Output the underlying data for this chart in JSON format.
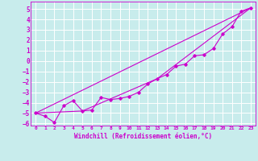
{
  "title": "",
  "xlabel": "Windchill (Refroidissement éolien,°C)",
  "bg_color": "#c8ecec",
  "grid_color": "#aadddd",
  "line_color": "#cc00cc",
  "xlim": [
    -0.5,
    23.5
  ],
  "ylim": [
    -6.2,
    5.7
  ],
  "yticks": [
    -6,
    -5,
    -4,
    -3,
    -2,
    -1,
    0,
    1,
    2,
    3,
    4,
    5
  ],
  "xticks": [
    0,
    1,
    2,
    3,
    4,
    5,
    6,
    7,
    8,
    9,
    10,
    11,
    12,
    13,
    14,
    15,
    16,
    17,
    18,
    19,
    20,
    21,
    22,
    23
  ],
  "line1_x": [
    0,
    1,
    2,
    3,
    4,
    5,
    6,
    7,
    8,
    9,
    10,
    11,
    12,
    13,
    14,
    15,
    16,
    17,
    18,
    19,
    20,
    21,
    22,
    23
  ],
  "line1_y": [
    -5.0,
    -5.3,
    -5.9,
    -4.3,
    -3.8,
    -4.8,
    -4.7,
    -3.5,
    -3.7,
    -3.6,
    -3.4,
    -3.0,
    -2.2,
    -1.7,
    -1.3,
    -0.5,
    -0.3,
    0.5,
    0.6,
    1.2,
    2.6,
    3.3,
    4.8,
    5.1
  ],
  "line2_x": [
    0,
    23
  ],
  "line2_y": [
    -5.0,
    5.1
  ],
  "line3_x": [
    0,
    5,
    13,
    23
  ],
  "line3_y": [
    -5.0,
    -4.8,
    -1.7,
    5.1
  ],
  "xlabel_fontsize": 5.5,
  "ytick_fontsize": 5.5,
  "xtick_fontsize": 4.5
}
